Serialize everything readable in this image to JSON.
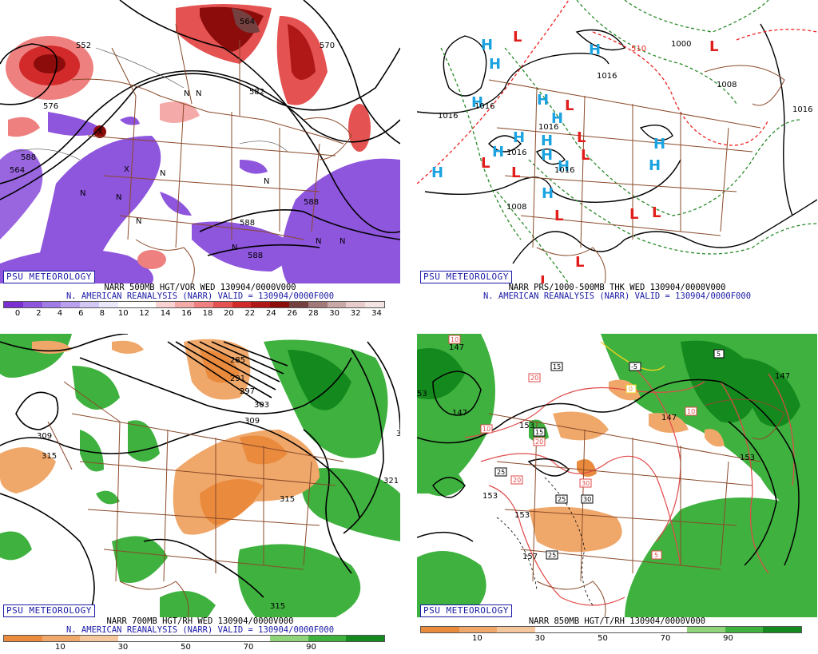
{
  "badge": "PSU METEOROLOGY",
  "panels": {
    "tl": {
      "line1": "NARR 500MB HGT/VOR WED 130904/0000V000",
      "line2": "N. AMERICAN REANALYSIS (NARR) VALID = 130904/0000F000",
      "colorbar_ticks": [
        "0",
        "2",
        "4",
        "6",
        "8",
        "10",
        "12",
        "14",
        "16",
        "18",
        "20",
        "22",
        "24",
        "26",
        "28",
        "30",
        "32",
        "34"
      ],
      "colorbar_colors": [
        "#7b2fd0",
        "#8e55dd",
        "#a17ce6",
        "#b8a0ef",
        "#d3c7f6",
        "#ece8fb",
        "#ffffff",
        "#ffffff",
        "#fbd2d2",
        "#f5aaaa",
        "#ee8080",
        "#e45252",
        "#d22a2a",
        "#b01818",
        "#8c0c0c",
        "#744040",
        "#a37a7a",
        "#c9a8a8",
        "#e7cccc",
        "#f3e3e3"
      ],
      "contour_labels": [
        "576",
        "588",
        "564",
        "582",
        "588",
        "552",
        "570",
        "564",
        "588",
        "588"
      ],
      "symbols": [
        "N",
        "N",
        "N",
        "N",
        "N",
        "N",
        "N",
        "N",
        "N",
        "N",
        "X",
        "X"
      ]
    },
    "tr": {
      "line1": "NARR PRS/1000-500MB THK WED 130904/0000V000",
      "line2": "N. AMERICAN REANALYSIS (NARR) VALID = 130904/0000F000",
      "high_symbol": "H",
      "low_symbol": "L",
      "contour_labels": [
        "1016",
        "1016",
        "1016",
        "1016",
        "1008",
        "1016",
        "1000",
        "1008",
        "1016",
        "1016",
        "510"
      ]
    },
    "bl": {
      "line1": "NARR 700MB HGT/RH WED 130904/0000V000",
      "line2": "N. AMERICAN REANALYSIS (NARR) VALID = 130904/0000F000",
      "colorbar_ticks": [
        "10",
        "30",
        "50",
        "70",
        "90"
      ],
      "colorbar_colors": [
        "#e98a3d",
        "#f0a86a",
        "#f5c79c",
        "#ffffff",
        "#ffffff",
        "#ffffff",
        "#ffffff",
        "#8fd47a",
        "#3fb13f",
        "#148a1e"
      ],
      "contour_labels": [
        "285",
        "291",
        "297",
        "303",
        "309",
        "309",
        "315",
        "315",
        "321",
        "315",
        "3"
      ]
    },
    "br": {
      "line1": "NARR 850MB HGT/T/RH 130904/0000V000",
      "colorbar_ticks": [
        "10",
        "30",
        "50",
        "70",
        "90"
      ],
      "colorbar_colors": [
        "#e98a3d",
        "#f0a86a",
        "#f5c79c",
        "#ffffff",
        "#ffffff",
        "#ffffff",
        "#ffffff",
        "#8fd47a",
        "#3fb13f",
        "#148a1e"
      ],
      "contour_labels": [
        "147",
        "147",
        "153",
        "153",
        "153",
        "147",
        "147",
        "153",
        "53",
        "157"
      ],
      "temp_labels": [
        "10",
        "5",
        "-5",
        "0",
        "15",
        "20",
        "20",
        "15",
        "25",
        "20",
        "25",
        "30",
        "30",
        "25",
        "5",
        "10",
        "10"
      ]
    }
  }
}
